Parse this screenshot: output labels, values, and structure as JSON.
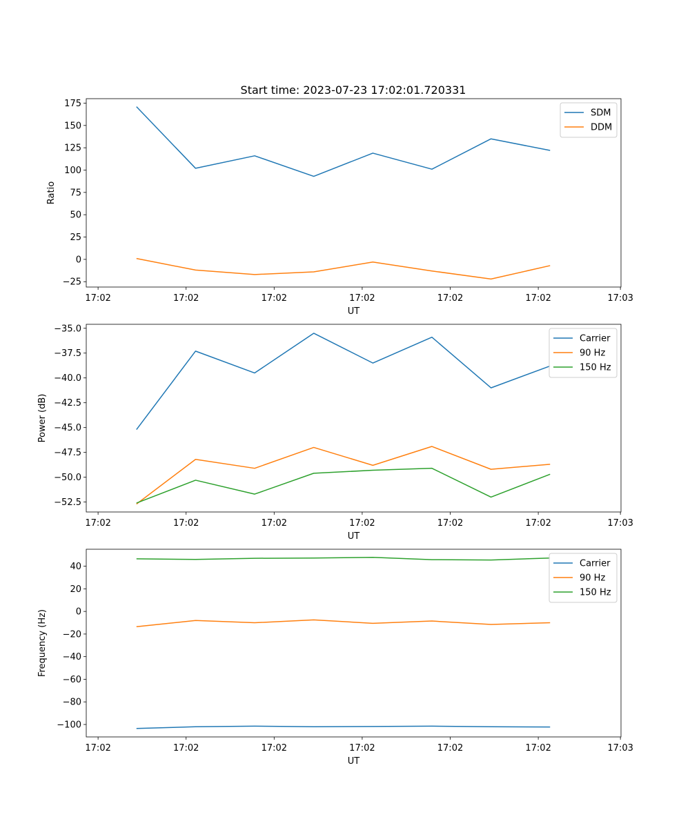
{
  "figure": {
    "title": "Start time: 2023-07-23 17:02:01.720331"
  },
  "chart_data": [
    {
      "type": "line",
      "title": "",
      "xlabel": "UT",
      "ylabel": "Ratio",
      "x": [
        1,
        2,
        3,
        4,
        5,
        6,
        7,
        8
      ],
      "xlim": [
        0.15,
        9.2
      ],
      "xticks": [
        0.35,
        1.84,
        3.33,
        4.82,
        6.31,
        7.8,
        9.19
      ],
      "xtick_labels": [
        "17:02",
        "17:02",
        "17:02",
        "17:02",
        "17:02",
        "17:02",
        "17:03"
      ],
      "ylim": [
        -31,
        180
      ],
      "yticks": [
        -25,
        0,
        25,
        50,
        75,
        100,
        125,
        150,
        175
      ],
      "ytick_labels": [
        "−25",
        "0",
        "25",
        "50",
        "75",
        "100",
        "125",
        "150",
        "175"
      ],
      "grid": false,
      "legend_position": "top-right",
      "series": [
        {
          "name": "SDM",
          "color": "#1f77b4",
          "values": [
            171,
            102,
            116,
            93,
            119,
            101,
            135,
            122
          ]
        },
        {
          "name": "DDM",
          "color": "#ff7f0e",
          "values": [
            1,
            -12,
            -17,
            -14,
            -3,
            -13,
            -22,
            -7
          ]
        }
      ]
    },
    {
      "type": "line",
      "title": "",
      "xlabel": "UT",
      "ylabel": "Power (dB)",
      "x": [
        1,
        2,
        3,
        4,
        5,
        6,
        7,
        8
      ],
      "xlim": [
        0.15,
        9.2
      ],
      "xticks": [
        0.35,
        1.84,
        3.33,
        4.82,
        6.31,
        7.8,
        9.19
      ],
      "xtick_labels": [
        "17:02",
        "17:02",
        "17:02",
        "17:02",
        "17:02",
        "17:02",
        "17:03"
      ],
      "ylim": [
        -53.5,
        -34.6
      ],
      "yticks": [
        -52.5,
        -50.0,
        -47.5,
        -45.0,
        -42.5,
        -40.0,
        -37.5,
        -35.0
      ],
      "ytick_labels": [
        "−52.5",
        "−50.0",
        "−47.5",
        "−45.0",
        "−42.5",
        "−40.0",
        "−37.5",
        "−35.0"
      ],
      "grid": false,
      "legend_position": "top-right",
      "series": [
        {
          "name": "Carrier",
          "color": "#1f77b4",
          "values": [
            -45.2,
            -37.3,
            -39.5,
            -35.5,
            -38.5,
            -35.9,
            -41.0,
            -38.8
          ]
        },
        {
          "name": "90 Hz",
          "color": "#ff7f0e",
          "values": [
            -52.7,
            -48.2,
            -49.1,
            -47.0,
            -48.8,
            -46.9,
            -49.2,
            -48.7
          ]
        },
        {
          "name": "150 Hz",
          "color": "#2ca02c",
          "values": [
            -52.6,
            -50.3,
            -51.7,
            -49.6,
            -49.3,
            -49.1,
            -52.0,
            -49.7
          ]
        }
      ]
    },
    {
      "type": "line",
      "title": "",
      "xlabel": "UT",
      "ylabel": "Frequency (Hz)",
      "x": [
        1,
        2,
        3,
        4,
        5,
        6,
        7,
        8
      ],
      "xlim": [
        0.15,
        9.2
      ],
      "xticks": [
        0.35,
        1.84,
        3.33,
        4.82,
        6.31,
        7.8,
        9.19
      ],
      "xtick_labels": [
        "17:02",
        "17:02",
        "17:02",
        "17:02",
        "17:02",
        "17:02",
        "17:03"
      ],
      "ylim": [
        -111,
        55
      ],
      "yticks": [
        -100,
        -80,
        -60,
        -40,
        -20,
        0,
        20,
        40
      ],
      "ytick_labels": [
        "−100",
        "−80",
        "−60",
        "−40",
        "−20",
        "0",
        "20",
        "40"
      ],
      "grid": false,
      "legend_position": "top-right",
      "series": [
        {
          "name": "Carrier",
          "color": "#1f77b4",
          "values": [
            -103.5,
            -102,
            -101.5,
            -102,
            -101.8,
            -101.5,
            -102,
            -102.2
          ]
        },
        {
          "name": "90 Hz",
          "color": "#ff7f0e",
          "values": [
            -13.5,
            -8,
            -10,
            -7.5,
            -10.5,
            -8.5,
            -11.5,
            -10
          ]
        },
        {
          "name": "150 Hz",
          "color": "#2ca02c",
          "values": [
            46.5,
            46,
            47,
            47.2,
            47.8,
            45.8,
            45.5,
            47.2
          ]
        }
      ]
    }
  ]
}
